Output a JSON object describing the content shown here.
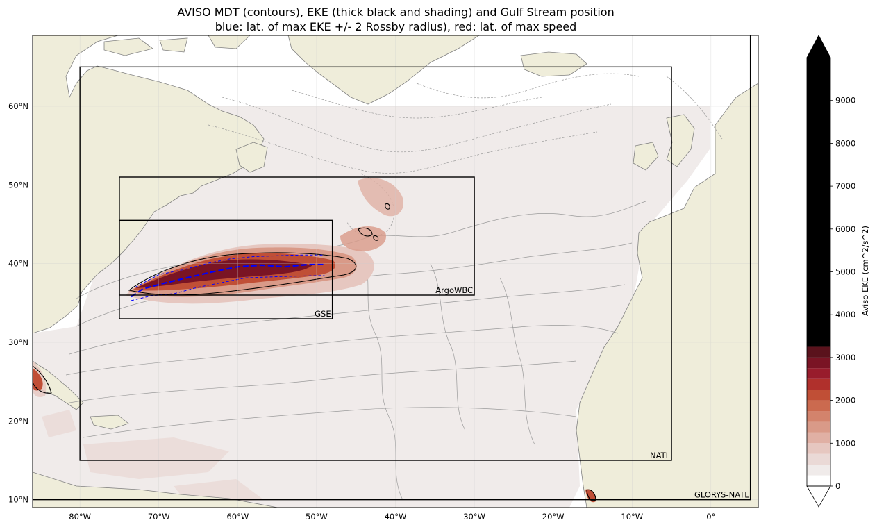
{
  "title": {
    "line1": "AVISO MDT (contours), EKE (thick black and shading) and Gulf Stream position",
    "line2": "blue: lat. of max EKE +/- 2 Rossby radius), red: lat. of max speed"
  },
  "map": {
    "lon_range": [
      -86,
      6
    ],
    "lat_range": [
      9,
      69
    ],
    "lon_ticks": [
      {
        "value": -80,
        "label": "80°W"
      },
      {
        "value": -70,
        "label": "70°W"
      },
      {
        "value": -60,
        "label": "60°W"
      },
      {
        "value": -50,
        "label": "50°W"
      },
      {
        "value": -40,
        "label": "40°W"
      },
      {
        "value": -30,
        "label": "30°W"
      },
      {
        "value": -20,
        "label": "20°W"
      },
      {
        "value": -10,
        "label": "10°W"
      },
      {
        "value": 0,
        "label": "0°"
      }
    ],
    "lat_ticks": [
      {
        "value": 10,
        "label": "10°N"
      },
      {
        "value": 20,
        "label": "20°N"
      },
      {
        "value": 30,
        "label": "30°N"
      },
      {
        "value": 40,
        "label": "40°N"
      },
      {
        "value": 50,
        "label": "50°N"
      },
      {
        "value": 60,
        "label": "60°N"
      }
    ],
    "colors": {
      "land": "#efedda",
      "ocean_shading_low": "#f0ebea",
      "coast": "#808080",
      "gulf_stream_envelope": "#0000ff",
      "gulf_stream_max_eke": "#0000ff",
      "gulf_stream_max_speed": "#ff0000"
    },
    "regions": [
      {
        "name": "GLORYS-NATL",
        "lon": [
          -86,
          5
        ],
        "lat": [
          10,
          70
        ]
      },
      {
        "name": "NATL",
        "lon": [
          -80,
          -5
        ],
        "lat": [
          15,
          65
        ]
      },
      {
        "name": "ArgoWBC",
        "lon": [
          -75,
          -30
        ],
        "lat": [
          36,
          51
        ]
      },
      {
        "name": "GSE",
        "lon": [
          -75,
          -48
        ],
        "lat": [
          33,
          45.5
        ]
      }
    ],
    "gulf_stream": {
      "max_eke_lat": [
        [
          -73.5,
          35.8
        ],
        [
          -72,
          36.8
        ],
        [
          -69,
          37.6
        ],
        [
          -66,
          38.3
        ],
        [
          -63,
          39.0
        ],
        [
          -60,
          39.6
        ],
        [
          -57,
          39.8
        ],
        [
          -54,
          39.6
        ],
        [
          -51,
          39.9
        ],
        [
          -49,
          39.9
        ]
      ],
      "north_envelope": [
        [
          -73,
          37.0
        ],
        [
          -70,
          38.6
        ],
        [
          -67,
          39.2
        ],
        [
          -64,
          40.0
        ],
        [
          -61,
          40.6
        ],
        [
          -58,
          40.9
        ],
        [
          -55,
          41.0
        ],
        [
          -52,
          41.1
        ],
        [
          -49,
          41.1
        ]
      ],
      "south_envelope": [
        [
          -73.5,
          35.3
        ],
        [
          -71,
          35.9
        ],
        [
          -68,
          36.2
        ],
        [
          -65,
          37.0
        ],
        [
          -62,
          37.6
        ],
        [
          -59,
          38.2
        ],
        [
          -56,
          38.3
        ],
        [
          -53,
          38.4
        ],
        [
          -49,
          38.5
        ]
      ]
    }
  },
  "colorbar": {
    "label": "Aviso EKE (cm^2/s^2)",
    "range": [
      0,
      10000
    ],
    "ticks": [
      0,
      1000,
      2000,
      3000,
      4000,
      5000,
      6000,
      7000,
      8000,
      9000
    ],
    "levels": [
      {
        "from": 0,
        "to": 250,
        "color": "#ffffff"
      },
      {
        "from": 250,
        "to": 500,
        "color": "#f0ebea"
      },
      {
        "from": 500,
        "to": 750,
        "color": "#ead9d6"
      },
      {
        "from": 750,
        "to": 1000,
        "color": "#e6c7c0"
      },
      {
        "from": 1000,
        "to": 1250,
        "color": "#e0b0a4"
      },
      {
        "from": 1250,
        "to": 1500,
        "color": "#d99a88"
      },
      {
        "from": 1500,
        "to": 1750,
        "color": "#d3836c"
      },
      {
        "from": 1750,
        "to": 2000,
        "color": "#cb6a4f"
      },
      {
        "from": 2000,
        "to": 2250,
        "color": "#c04f36"
      },
      {
        "from": 2250,
        "to": 2500,
        "color": "#b0302c"
      },
      {
        "from": 2500,
        "to": 2750,
        "color": "#981c2c"
      },
      {
        "from": 2750,
        "to": 3000,
        "color": "#7a1424"
      },
      {
        "from": 3000,
        "to": 3250,
        "color": "#5a121c"
      },
      {
        "from": 3250,
        "to": 10000,
        "color": "#000000"
      }
    ]
  }
}
